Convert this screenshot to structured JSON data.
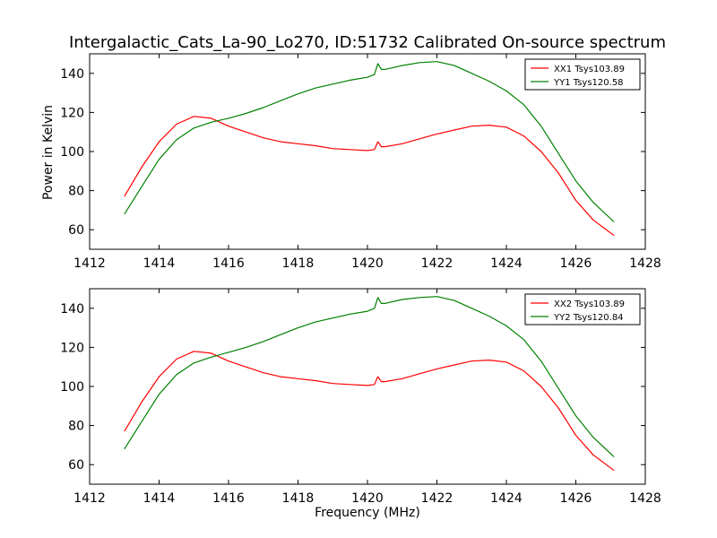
{
  "figure": {
    "title": "Intergalactic_Cats_La-90_Lo270, ID:51732 Calibrated On-source spectrum",
    "ylabel": "Power in Kelvin",
    "xlabel": "Frequency (MHz)"
  },
  "chart_data": [
    {
      "type": "line",
      "xlim": [
        1412,
        1428
      ],
      "ylim": [
        50,
        150
      ],
      "xticks": [
        1412,
        1414,
        1416,
        1418,
        1420,
        1422,
        1424,
        1426,
        1428
      ],
      "yticks": [
        60,
        80,
        100,
        120,
        140
      ],
      "legend": "top-right",
      "series": [
        {
          "name": "XX1 Tsys103.89",
          "color": "#ff0000",
          "x": [
            1413.0,
            1413.5,
            1414.0,
            1414.5,
            1415.0,
            1415.5,
            1416.0,
            1416.5,
            1417.0,
            1417.5,
            1418.0,
            1418.5,
            1419.0,
            1419.5,
            1420.0,
            1420.2,
            1420.3,
            1420.4,
            1420.5,
            1421.0,
            1421.5,
            1422.0,
            1422.5,
            1423.0,
            1423.5,
            1424.0,
            1424.5,
            1425.0,
            1425.5,
            1426.0,
            1426.5,
            1427.1
          ],
          "y": [
            77,
            92,
            105,
            114,
            118,
            117,
            113,
            110,
            107,
            105,
            104,
            103,
            101.5,
            101,
            100.5,
            101,
            105,
            102.5,
            102.5,
            104,
            106.5,
            109,
            111,
            113,
            113.5,
            112.5,
            108,
            100,
            89,
            75,
            65,
            57
          ]
        },
        {
          "name": "YY1 Tsys120.58",
          "color": "#008000",
          "x": [
            1413.0,
            1413.5,
            1414.0,
            1414.5,
            1415.0,
            1415.5,
            1416.0,
            1416.5,
            1417.0,
            1417.5,
            1418.0,
            1418.5,
            1419.0,
            1419.5,
            1420.0,
            1420.2,
            1420.3,
            1420.4,
            1420.5,
            1421.0,
            1421.5,
            1422.0,
            1422.5,
            1423.0,
            1423.5,
            1424.0,
            1424.5,
            1425.0,
            1425.5,
            1426.0,
            1426.5,
            1427.1
          ],
          "y": [
            68,
            82,
            96,
            106,
            112,
            115,
            117,
            119.5,
            122.5,
            126,
            129.5,
            132.5,
            134.5,
            136.5,
            138,
            139.5,
            145,
            142,
            142,
            144,
            145.5,
            146,
            144,
            140,
            136,
            131,
            124,
            113,
            99,
            85,
            74,
            64
          ]
        }
      ]
    },
    {
      "type": "line",
      "xlim": [
        1412,
        1428
      ],
      "ylim": [
        50,
        150
      ],
      "xticks": [
        1412,
        1414,
        1416,
        1418,
        1420,
        1422,
        1424,
        1426,
        1428
      ],
      "yticks": [
        60,
        80,
        100,
        120,
        140
      ],
      "legend": "top-right",
      "series": [
        {
          "name": "XX2 Tsys103.89",
          "color": "#ff0000",
          "x": [
            1413.0,
            1413.5,
            1414.0,
            1414.5,
            1415.0,
            1415.5,
            1416.0,
            1416.5,
            1417.0,
            1417.5,
            1418.0,
            1418.5,
            1419.0,
            1419.5,
            1420.0,
            1420.2,
            1420.3,
            1420.4,
            1420.5,
            1421.0,
            1421.5,
            1422.0,
            1422.5,
            1423.0,
            1423.5,
            1424.0,
            1424.5,
            1425.0,
            1425.5,
            1426.0,
            1426.5,
            1427.1
          ],
          "y": [
            77,
            92,
            105,
            114,
            118,
            117,
            113,
            110,
            107,
            105,
            104,
            103,
            101.5,
            101,
            100.5,
            101,
            105,
            102.5,
            102.5,
            104,
            106.5,
            109,
            111,
            113,
            113.5,
            112.5,
            108,
            100,
            89,
            75,
            65,
            57
          ]
        },
        {
          "name": "YY2 Tsys120.84",
          "color": "#008000",
          "x": [
            1413.0,
            1413.5,
            1414.0,
            1414.5,
            1415.0,
            1415.5,
            1416.0,
            1416.5,
            1417.0,
            1417.5,
            1418.0,
            1418.5,
            1419.0,
            1419.5,
            1420.0,
            1420.2,
            1420.3,
            1420.4,
            1420.5,
            1421.0,
            1421.5,
            1422.0,
            1422.5,
            1423.0,
            1423.5,
            1424.0,
            1424.5,
            1425.0,
            1425.5,
            1426.0,
            1426.5,
            1427.1
          ],
          "y": [
            68,
            82,
            96,
            106,
            112,
            115,
            117.5,
            120,
            123,
            126.5,
            130,
            133,
            135,
            137,
            138.5,
            140,
            145.5,
            142.5,
            142.5,
            144.5,
            145.5,
            146,
            144,
            140,
            136,
            131,
            124,
            113,
            99,
            85,
            74,
            64
          ]
        }
      ]
    }
  ]
}
